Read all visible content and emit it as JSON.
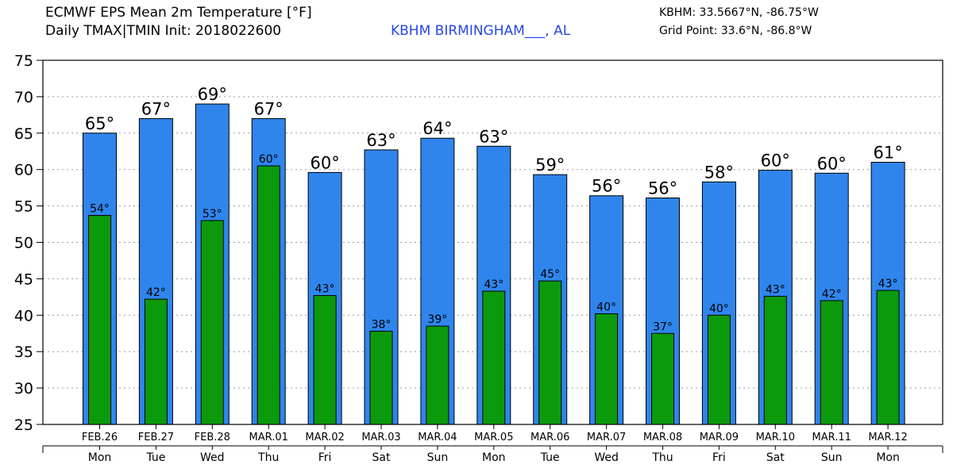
{
  "header": {
    "title_line1": "ECMWF EPS Mean 2m Temperature [°F]",
    "title_line2": "Daily TMAX|TMIN Init: 2018022600",
    "station": "KBHM BIRMINGHAM___, AL",
    "station_coords": "KBHM: 33.5667°N, -86.75°W",
    "grid_point": "Grid Point: 33.6°N, -86.8°W"
  },
  "colors": {
    "tmax_bar": "#2f85ec",
    "tmin_bar": "#0b9a0b",
    "station_text": "#2846e8",
    "grid": "#9a9a9a"
  },
  "chart_data": {
    "type": "bar",
    "categories": [
      "FEB.26",
      "FEB.27",
      "FEB.28",
      "MAR.01",
      "MAR.02",
      "MAR.03",
      "MAR.04",
      "MAR.05",
      "MAR.06",
      "MAR.07",
      "MAR.08",
      "MAR.09",
      "MAR.10",
      "MAR.11",
      "MAR.12"
    ],
    "weekdays": [
      "Mon",
      "Tue",
      "Wed",
      "Thu",
      "Fri",
      "Sat",
      "Sun",
      "Mon",
      "Tue",
      "Wed",
      "Thu",
      "Fri",
      "Sat",
      "Sun",
      "Mon"
    ],
    "series": [
      {
        "key": "tmax",
        "values": [
          65.0,
          67.0,
          69.0,
          67.0,
          59.6,
          62.7,
          64.3,
          63.2,
          59.3,
          56.4,
          56.1,
          58.3,
          59.9,
          59.5,
          61.0
        ],
        "labels": [
          "65°",
          "67°",
          "69°",
          "67°",
          "60°",
          "63°",
          "64°",
          "63°",
          "59°",
          "56°",
          "56°",
          "58°",
          "60°",
          "60°",
          "61°"
        ]
      },
      {
        "key": "tmin",
        "values": [
          53.7,
          42.2,
          53.0,
          60.5,
          42.7,
          37.8,
          38.5,
          43.3,
          44.7,
          40.2,
          37.5,
          40.0,
          42.6,
          42.0,
          43.4
        ],
        "labels": [
          "54°",
          "42°",
          "53°",
          "60°",
          "43°",
          "38°",
          "39°",
          "43°",
          "45°",
          "40°",
          "37°",
          "40°",
          "43°",
          "42°",
          "43°"
        ]
      }
    ],
    "yticks": [
      "25",
      "30",
      "35",
      "40",
      "45",
      "50",
      "55",
      "60",
      "65",
      "70",
      "75"
    ],
    "ylim": [
      25,
      75
    ],
    "grid": true
  }
}
